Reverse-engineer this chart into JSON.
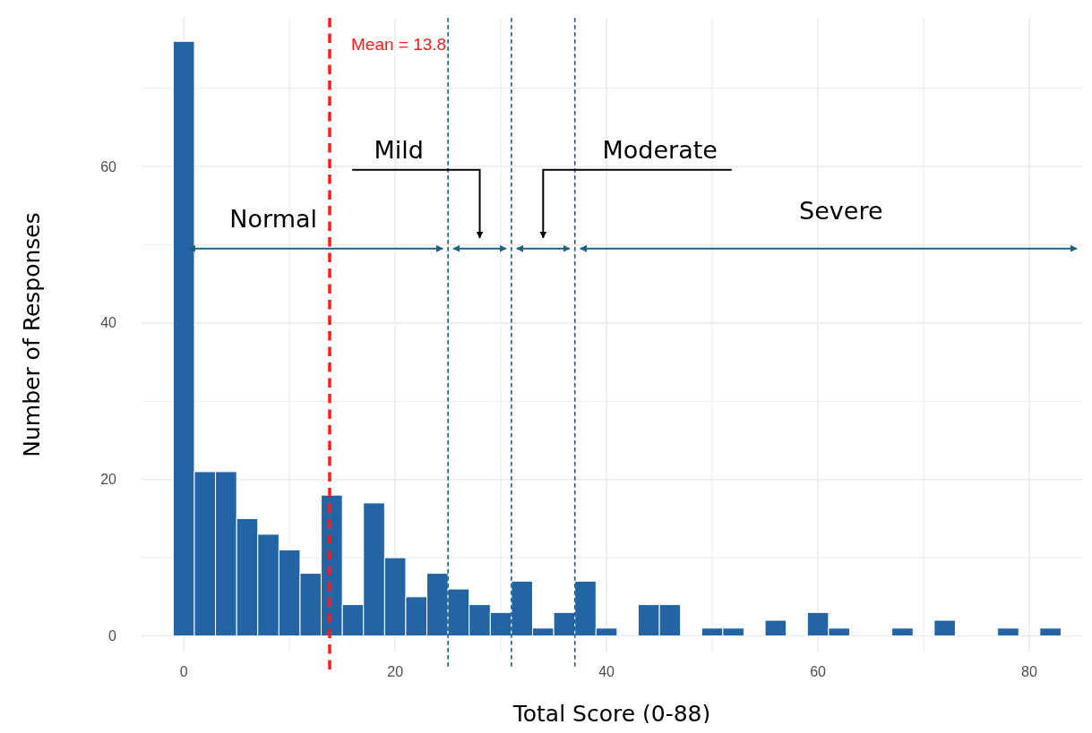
{
  "chart_data": {
    "type": "histogram",
    "xlabel": "Total Score (0-88)",
    "ylabel": "Number of Responses",
    "bins": [
      -1,
      1,
      3,
      5,
      7,
      9,
      11,
      13,
      15,
      17,
      19,
      21,
      23,
      25,
      27,
      29,
      31,
      33,
      35,
      37,
      39,
      41,
      43,
      45,
      47,
      49,
      51,
      53,
      55,
      57,
      59,
      61,
      63,
      65,
      67,
      69,
      71,
      73,
      75,
      77,
      79,
      81,
      83
    ],
    "values": [
      76,
      21,
      21,
      15,
      13,
      11,
      8,
      18,
      4,
      17,
      10,
      5,
      8,
      6,
      4,
      3,
      7,
      1,
      3,
      7,
      1,
      0,
      4,
      4,
      0,
      1,
      1,
      0,
      2,
      0,
      3,
      1,
      0,
      0,
      1,
      0,
      2,
      0,
      0,
      1,
      0,
      1
    ],
    "color": "#2364a5",
    "xlim": [
      -4,
      85
    ],
    "xticks": [
      0,
      {
        "value": 10,
        "label": null
      },
      20,
      {
        "value": 30,
        "label": null
      },
      40,
      {
        "value": 50,
        "label": null
      },
      60,
      {
        "value": 70,
        "label": null
      },
      80
    ],
    "ylim": [
      -2,
      79
    ],
    "yticks": [
      0,
      {
        "value": 10,
        "label": null
      },
      20,
      {
        "value": 30,
        "label": null
      },
      40,
      {
        "value": 50,
        "label": null
      },
      60,
      {
        "value": 70,
        "label": null
      }
    ],
    "grid": true,
    "ref_lines": [
      {
        "axis": "x",
        "value": 13.8,
        "label": "Mean = 13.8",
        "color": "#ff1a1a",
        "line_style": "dashed"
      },
      {
        "axis": "x",
        "value": 25,
        "label": null,
        "color": "#1f5f80",
        "line_style": "dashed"
      },
      {
        "axis": "x",
        "value": 31,
        "label": null,
        "color": "#1f5f80",
        "line_style": "dashed"
      },
      {
        "axis": "x",
        "value": 37,
        "label": null,
        "color": "#1f5f80",
        "line_style": "dashed"
      }
    ],
    "annotations": [
      "Normal",
      "Mild",
      "Moderate",
      "Severe"
    ]
  }
}
